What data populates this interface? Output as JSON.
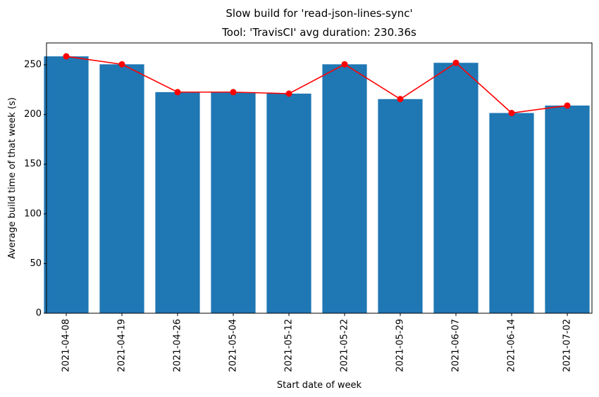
{
  "suptitle": "Slow build for 'read-json-lines-sync'",
  "chart_data": {
    "type": "bar",
    "title": "Tool: 'TravisCI' avg duration: 230.36s",
    "xlabel": "Start date of week",
    "ylabel": "Average build time of that week (s)",
    "categories": [
      "2021-04-08",
      "2021-04-19",
      "2021-04-26",
      "2021-05-04",
      "2021-05-12",
      "2021-05-22",
      "2021-05-29",
      "2021-06-07",
      "2021-06-14",
      "2021-07-02"
    ],
    "values": [
      258.5,
      250.5,
      222.5,
      222.5,
      221.0,
      250.5,
      215.5,
      252.0,
      201.5,
      209.0
    ],
    "ylim": [
      0,
      272
    ],
    "yticks": [
      0,
      50,
      100,
      150,
      200,
      250
    ],
    "bar_color": "#1f77b4",
    "line_color": "#ff0000",
    "overlay": "line-with-markers",
    "grid": false,
    "legend": "none"
  }
}
